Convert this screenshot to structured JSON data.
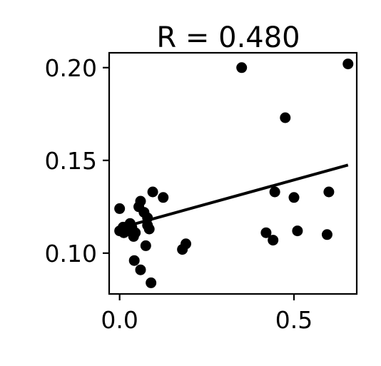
{
  "chart_data": {
    "type": "scatter",
    "title": "R = 0.480",
    "xlabel": "",
    "ylabel": "",
    "xlim": [
      -0.03,
      0.68
    ],
    "ylim": [
      0.078,
      0.208
    ],
    "x_ticks": [
      0.0,
      0.5
    ],
    "x_tick_labels": [
      "0.0",
      "0.5"
    ],
    "y_ticks": [
      0.1,
      0.15,
      0.2
    ],
    "y_tick_labels": [
      "0.10",
      "0.15",
      "0.20"
    ],
    "grid": false,
    "legend": "none",
    "colors": {
      "points": "#000000",
      "fit_line": "#000000"
    },
    "points": [
      {
        "x": 0.0,
        "y": 0.124
      },
      {
        "x": 0.0,
        "y": 0.112
      },
      {
        "x": 0.01,
        "y": 0.114
      },
      {
        "x": 0.012,
        "y": 0.111
      },
      {
        "x": 0.02,
        "y": 0.114
      },
      {
        "x": 0.025,
        "y": 0.112
      },
      {
        "x": 0.03,
        "y": 0.116
      },
      {
        "x": 0.035,
        "y": 0.114
      },
      {
        "x": 0.04,
        "y": 0.109
      },
      {
        "x": 0.042,
        "y": 0.096
      },
      {
        "x": 0.045,
        "y": 0.111
      },
      {
        "x": 0.055,
        "y": 0.125
      },
      {
        "x": 0.06,
        "y": 0.128
      },
      {
        "x": 0.06,
        "y": 0.091
      },
      {
        "x": 0.07,
        "y": 0.122
      },
      {
        "x": 0.075,
        "y": 0.104
      },
      {
        "x": 0.08,
        "y": 0.119
      },
      {
        "x": 0.08,
        "y": 0.115
      },
      {
        "x": 0.085,
        "y": 0.113
      },
      {
        "x": 0.09,
        "y": 0.084
      },
      {
        "x": 0.095,
        "y": 0.133
      },
      {
        "x": 0.125,
        "y": 0.13
      },
      {
        "x": 0.18,
        "y": 0.102
      },
      {
        "x": 0.19,
        "y": 0.105
      },
      {
        "x": 0.35,
        "y": 0.2
      },
      {
        "x": 0.42,
        "y": 0.111
      },
      {
        "x": 0.44,
        "y": 0.107
      },
      {
        "x": 0.445,
        "y": 0.133
      },
      {
        "x": 0.475,
        "y": 0.173
      },
      {
        "x": 0.5,
        "y": 0.13
      },
      {
        "x": 0.51,
        "y": 0.112
      },
      {
        "x": 0.595,
        "y": 0.11
      },
      {
        "x": 0.6,
        "y": 0.133
      },
      {
        "x": 0.655,
        "y": 0.202
      }
    ],
    "fit_line": {
      "x": [
        0.0,
        0.655
      ],
      "y": [
        0.1135,
        0.1475
      ]
    }
  }
}
